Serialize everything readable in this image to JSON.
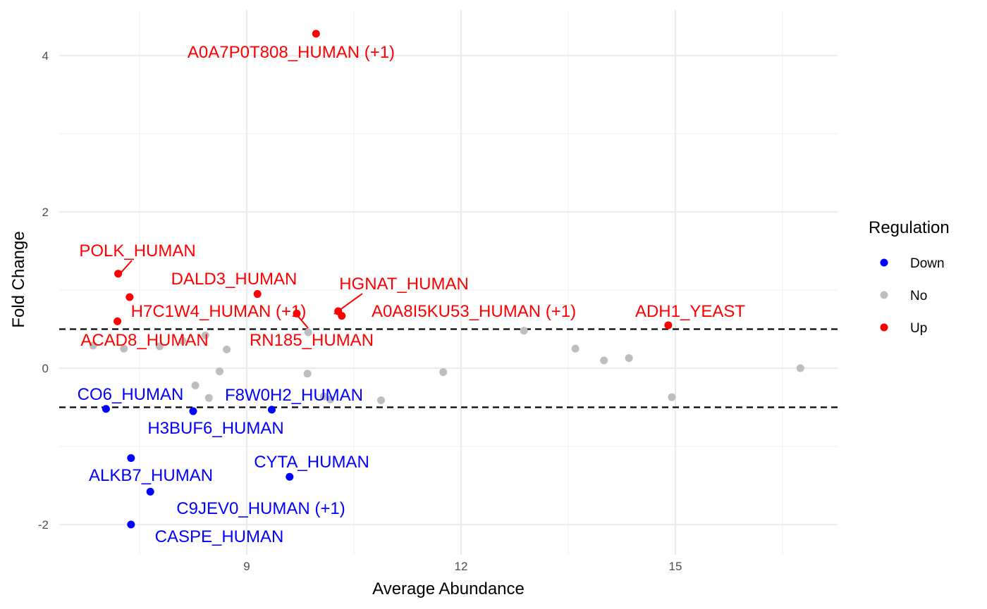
{
  "chart_data": {
    "type": "scatter",
    "xlabel": "Average Abundance",
    "ylabel": "Fold Change",
    "xlim": [
      6.7,
      17.8
    ],
    "ylim": [
      -2.35,
      4.65
    ],
    "x_ticks": [
      9,
      12,
      15
    ],
    "y_ticks": [
      -2,
      0,
      2,
      4
    ],
    "grid": true,
    "thresholds": [
      0.5,
      -0.5
    ],
    "legend": {
      "title": "Regulation",
      "placement": "right",
      "entries": [
        {
          "name": "Down",
          "color": "#0000ff"
        },
        {
          "name": "No",
          "color": "#bebebe"
        },
        {
          "name": "Up",
          "color": "#ff0000"
        }
      ]
    },
    "series": [
      {
        "name": "Down",
        "color": "#0000ff",
        "points": [
          {
            "x": 7.03,
            "y": -0.52,
            "label": "CO6_HUMAN"
          },
          {
            "x": 8.25,
            "y": -0.55,
            "label": "H3BUF6_HUMAN"
          },
          {
            "x": 9.35,
            "y": -0.53,
            "label": "F8W0H2_HUMAN"
          },
          {
            "x": 7.38,
            "y": -1.15,
            "label": "ALKB7_HUMAN"
          },
          {
            "x": 9.6,
            "y": -1.39,
            "label": "CYTA_HUMAN"
          },
          {
            "x": 7.65,
            "y": -1.58,
            "label": "C9JEV0_HUMAN (+1)"
          },
          {
            "x": 7.38,
            "y": -2.0,
            "label": "CASPE_HUMAN"
          }
        ]
      },
      {
        "name": "No",
        "color": "#bebebe",
        "points": [
          {
            "x": 6.85,
            "y": 0.29
          },
          {
            "x": 7.28,
            "y": 0.25
          },
          {
            "x": 7.78,
            "y": 0.28
          },
          {
            "x": 8.1,
            "y": 0.35
          },
          {
            "x": 8.42,
            "y": 0.42
          },
          {
            "x": 8.72,
            "y": 0.24
          },
          {
            "x": 8.62,
            "y": -0.04
          },
          {
            "x": 8.28,
            "y": -0.22
          },
          {
            "x": 8.47,
            "y": -0.38
          },
          {
            "x": 9.86,
            "y": 0.46
          },
          {
            "x": 9.85,
            "y": -0.07
          },
          {
            "x": 10.08,
            "y": -0.36
          },
          {
            "x": 10.17,
            "y": -0.4
          },
          {
            "x": 10.88,
            "y": -0.41
          },
          {
            "x": 11.75,
            "y": -0.05
          },
          {
            "x": 12.88,
            "y": 0.48
          },
          {
            "x": 13.6,
            "y": 0.25
          },
          {
            "x": 14.0,
            "y": 0.1
          },
          {
            "x": 14.35,
            "y": 0.13
          },
          {
            "x": 14.95,
            "y": -0.37
          },
          {
            "x": 16.75,
            "y": 0.0
          }
        ]
      },
      {
        "name": "Up",
        "color": "#ff0000",
        "points": [
          {
            "x": 9.97,
            "y": 4.28,
            "label": "A0A7P0T808_HUMAN (+1)"
          },
          {
            "x": 7.2,
            "y": 1.21,
            "label": "POLK_HUMAN"
          },
          {
            "x": 9.15,
            "y": 0.95,
            "label": "DALD3_HUMAN"
          },
          {
            "x": 10.28,
            "y": 0.73,
            "label": "HGNAT_HUMAN"
          },
          {
            "x": 7.36,
            "y": 0.91,
            "label": "H7C1W4_HUMAN (+1)"
          },
          {
            "x": 9.7,
            "y": 0.7,
            "label": "RN185_HUMAN"
          },
          {
            "x": 10.33,
            "y": 0.67,
            "label": "A0A8I5KU53_HUMAN (+1)"
          },
          {
            "x": 7.19,
            "y": 0.6,
            "label": "ACAD8_HUMAN"
          },
          {
            "x": 14.9,
            "y": 0.55,
            "label": "ADH1_YEAST"
          }
        ]
      }
    ]
  }
}
